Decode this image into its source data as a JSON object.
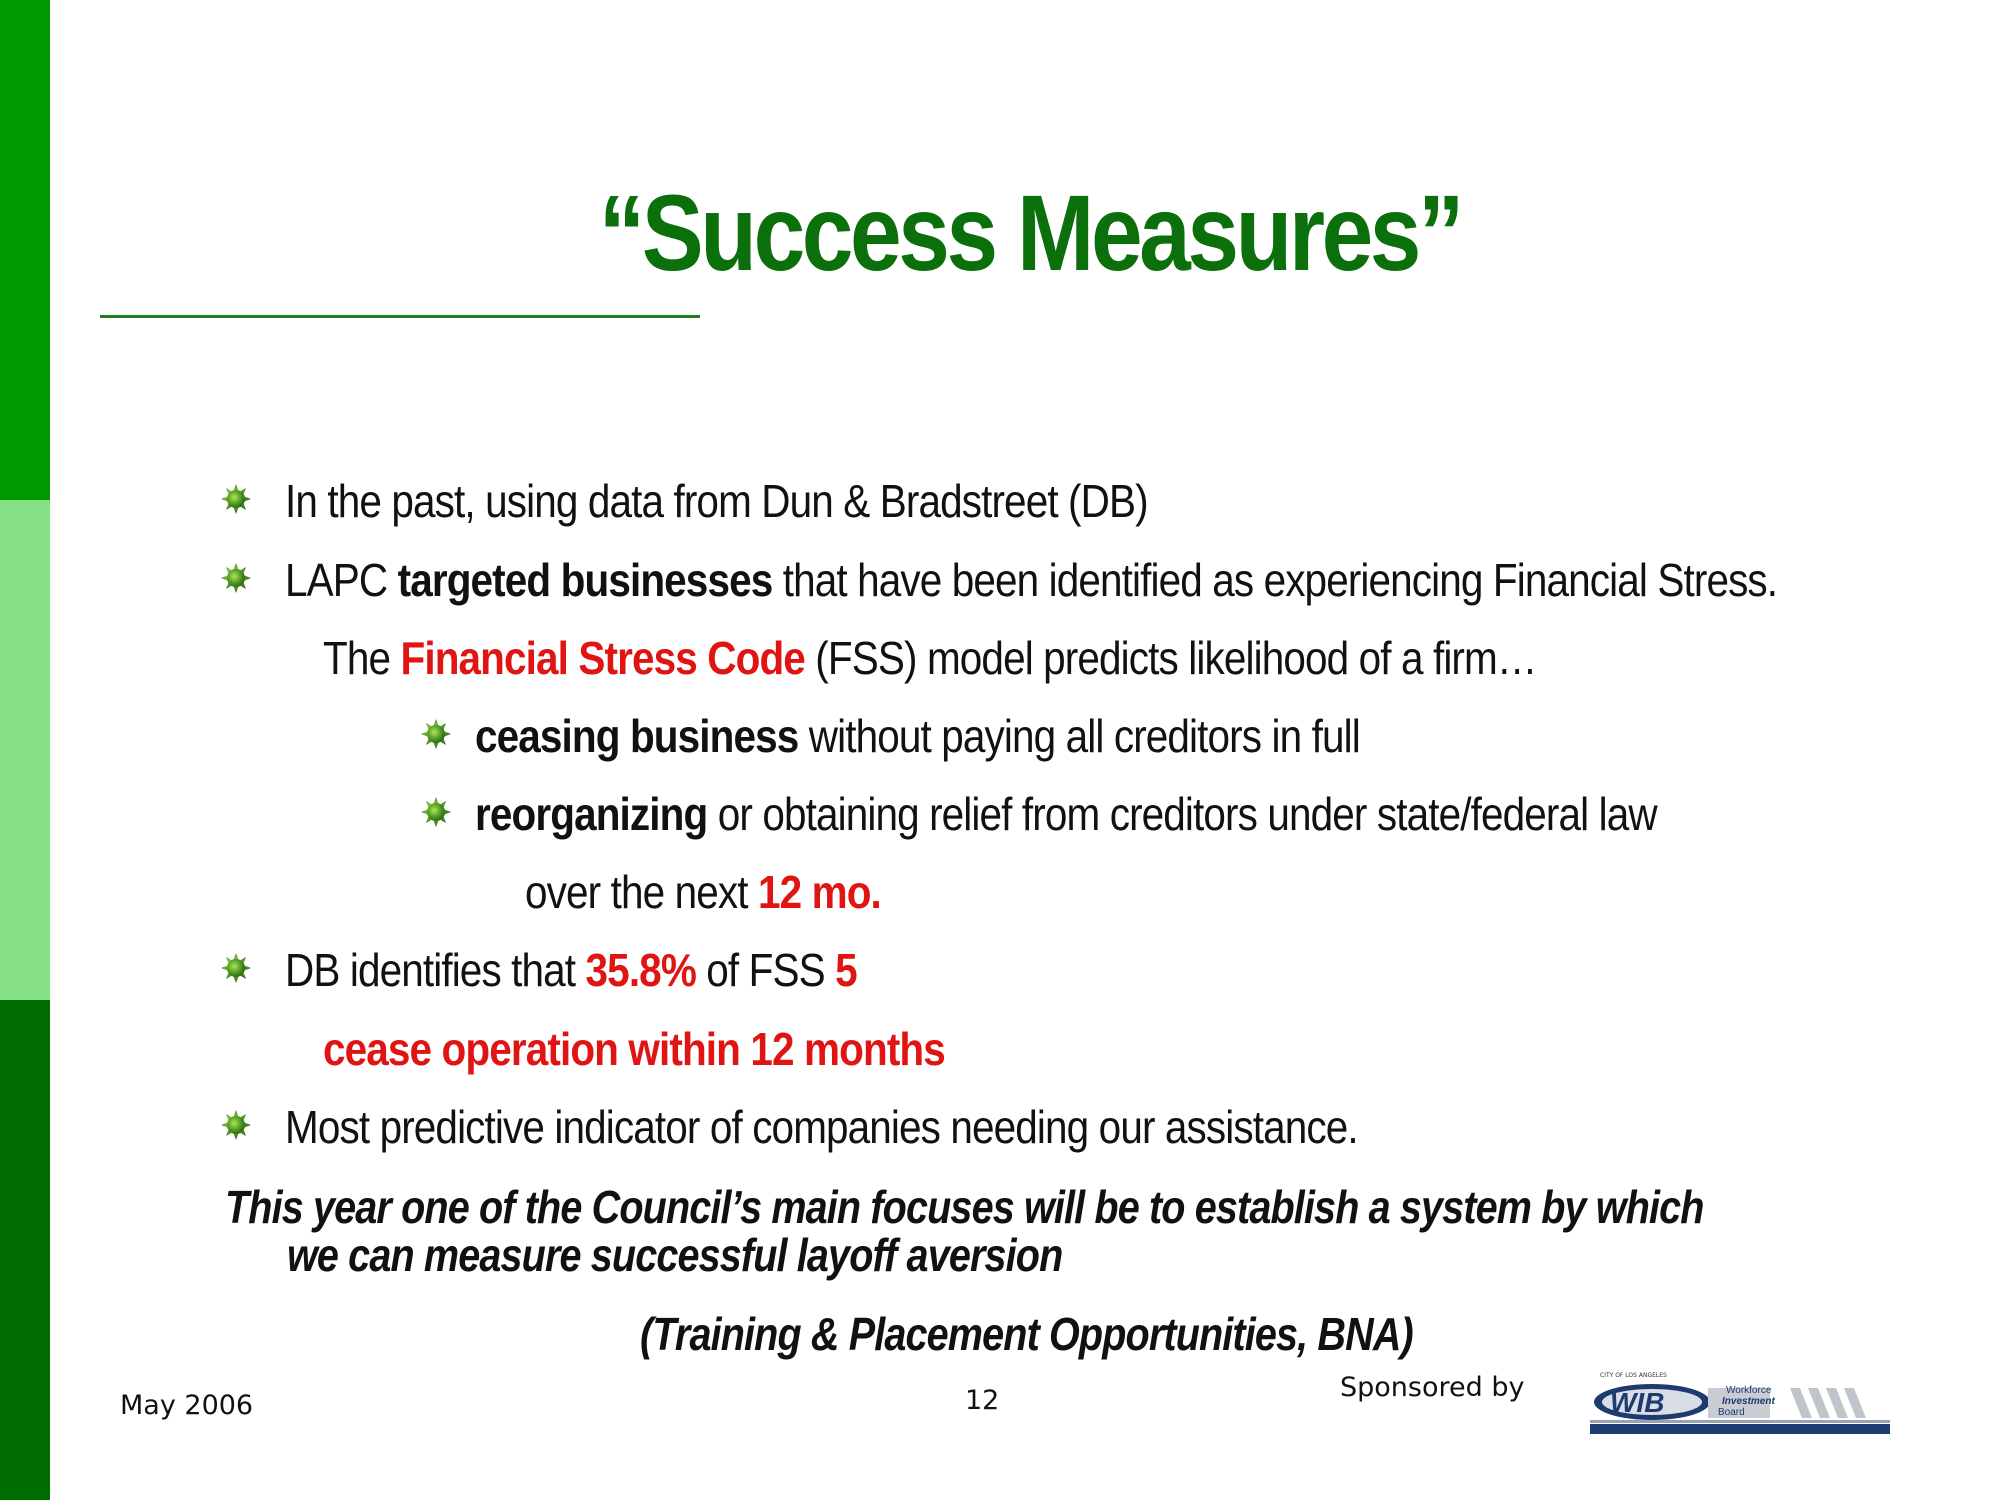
{
  "slide": {
    "title": "“Success Measures”",
    "bullets": [
      {
        "text": "In the past, using data from Dun & Bradstreet (DB)"
      },
      {
        "prefix": "LAPC ",
        "bold": "targeted businesses",
        "suffix": " that have been identified as experiencing Financial Stress."
      },
      {
        "prefix": "DB identifies that ",
        "pct": "35.8%",
        "middle": " of FSS ",
        "num": "5"
      },
      {
        "text": "Most predictive indicator of companies needing our assistance."
      }
    ],
    "fss_line": {
      "prefix": "The ",
      "highlight": "Financial Stress Code",
      "suffix": " (FSS) model predicts likelihood of a firm…"
    },
    "sub_bullets": [
      {
        "bold": "ceasing business",
        "rest": " without paying all creditors in full"
      },
      {
        "bold": "reorganizing",
        "rest": " or obtaining relief from creditors under state/federal law"
      }
    ],
    "over_line": {
      "prefix": "over the next ",
      "highlight": "12 mo."
    },
    "cease_line": "cease operation within 12 months",
    "closing_line1": "This year one of the Council’s main focuses will be to establish a system by which",
    "closing_line2": "we can measure successful layoff aversion",
    "closing_line3": "(Training & Placement Opportunities, BNA)"
  },
  "footer": {
    "date": "May 2006",
    "page_number": "12",
    "sponsored_by": "Sponsored by"
  },
  "logo": {
    "top_text": "CITY OF LOS ANGELES",
    "mark": "WIB",
    "line1": "Workforce",
    "line2": "Investment",
    "line3": "Board"
  },
  "colors": {
    "title_green": "#0b6f0b",
    "sidebar_dark": "#006d00",
    "sidebar_mid": "#009a00",
    "sidebar_light": "#86e086",
    "highlight_red": "#e11414"
  },
  "icons": {
    "bullet": "green-star-bullet-icon"
  }
}
